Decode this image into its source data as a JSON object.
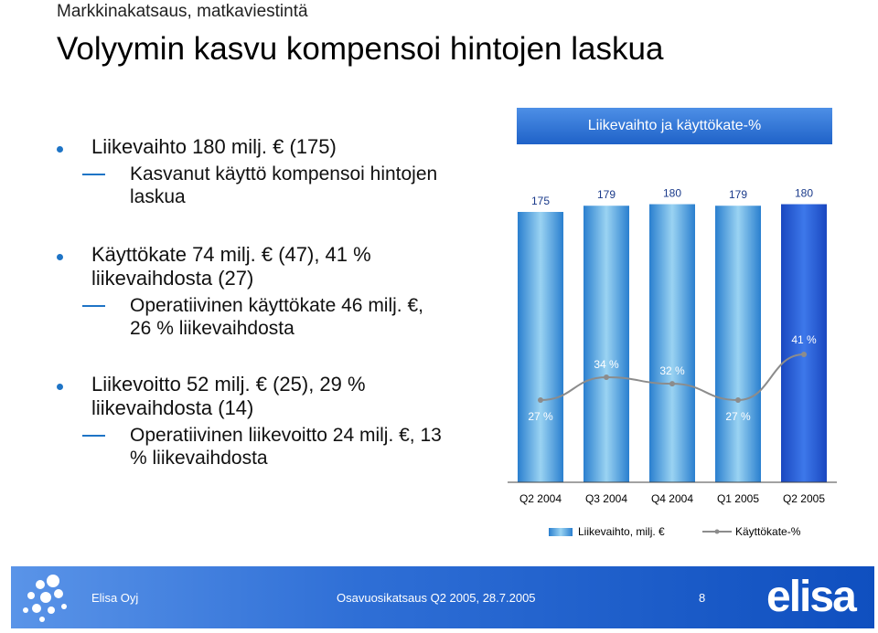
{
  "header": {
    "subtitle": "Markkinakatsaus, matkaviestintä",
    "title": "Volyymin kasvu kompensoi hintojen laskua"
  },
  "bullets": [
    {
      "text": "Liikevaihto 180 milj. € (175)",
      "sub": "Kasvanut käyttö kompensoi hintojen laskua"
    },
    {
      "text": "Käyttökate 74 milj. € (47), 41 % liikevaihdosta (27)",
      "sub": "Operatiivinen käyttökate 46 milj. €, 26 % liikevaihdosta"
    },
    {
      "text": "Liikevoitto 52 milj. € (25), 29 % liikevaihdosta (14)",
      "sub": "Operatiivinen liikevoitto 24 milj. €, 13 % liikevaihdosta"
    }
  ],
  "chart_data": {
    "type": "bar",
    "title": "Liikevaihto ja käyttökate-%",
    "categories": [
      "Q2 2004",
      "Q3 2004",
      "Q4 2004",
      "Q1 2005",
      "Q2 2005"
    ],
    "series": [
      {
        "name": "Liikevaihto, milj. €",
        "type": "bar",
        "values": [
          175,
          179,
          180,
          179,
          180
        ],
        "labels": [
          "175",
          "179",
          "180",
          "179",
          "180"
        ]
      },
      {
        "name": "Käyttökate-%",
        "type": "line",
        "values": [
          27,
          34,
          32,
          27,
          41
        ],
        "labels": [
          "27 %",
          "34 %",
          "32 %",
          "27 %",
          "41 %"
        ]
      }
    ],
    "legend": "bottom",
    "grid": false
  },
  "colors": {
    "bar_last": "#1f55d6",
    "bar": "#45a9e0",
    "line": "#8c8c8c",
    "accent": "#1e74c6"
  },
  "footer": {
    "company": "Elisa Oyj",
    "report": "Osavuosikatsaus Q2 2005, 28.7.2005",
    "page": "8",
    "brand": "elisa",
    "logo_icon": "elisa-dots-logo"
  }
}
